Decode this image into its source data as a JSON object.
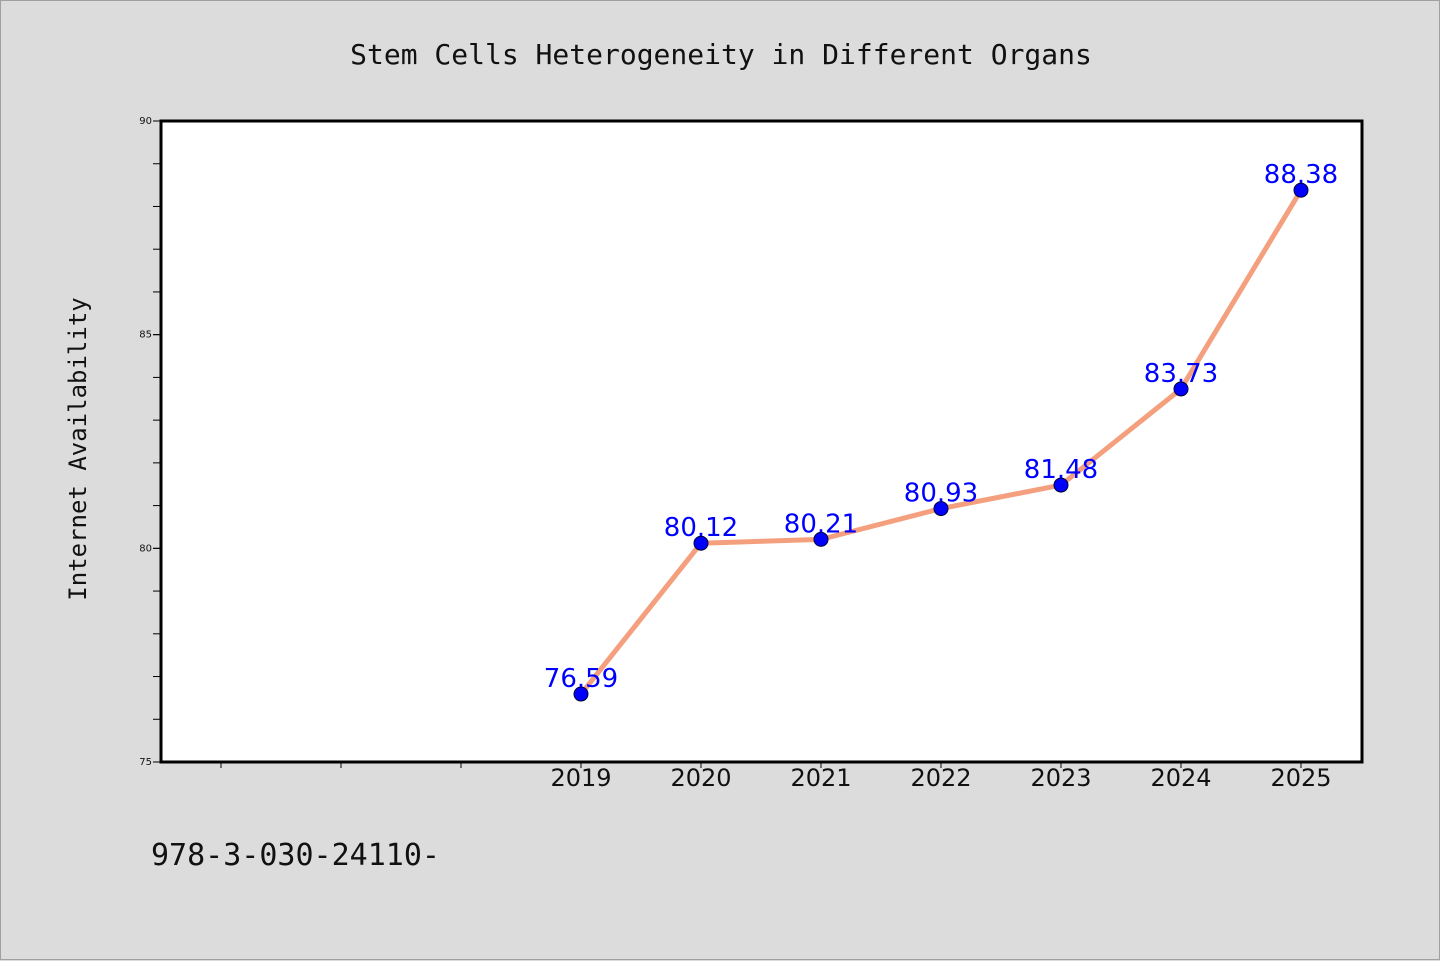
{
  "chart_data": {
    "type": "line",
    "title": "Stem Cells Heterogeneity in Different Organs",
    "xlabel": "",
    "ylabel": "Internet Availability",
    "categories": [
      "2019",
      "2020",
      "2021",
      "2022",
      "2023",
      "2024",
      "2025"
    ],
    "series": [
      {
        "values": [
          76.59,
          80.12,
          80.21,
          80.93,
          81.48,
          83.73,
          88.38
        ],
        "labels": [
          "76.59",
          "80.12",
          "80.21",
          "80.93",
          "81.48",
          "83.73",
          "88.38"
        ],
        "line_color": "#f4a07e",
        "marker_color": "#0000ff"
      }
    ],
    "ylim": [
      75,
      90
    ],
    "y_major_ticks": [
      "75",
      "80",
      "85",
      "90"
    ],
    "grid": false,
    "legend": "none"
  },
  "footnote": "978-3-030-24110-",
  "colors": {
    "background": "#dcdcdc",
    "plot_area": "#ffffff",
    "data_label": "#0000ff"
  }
}
